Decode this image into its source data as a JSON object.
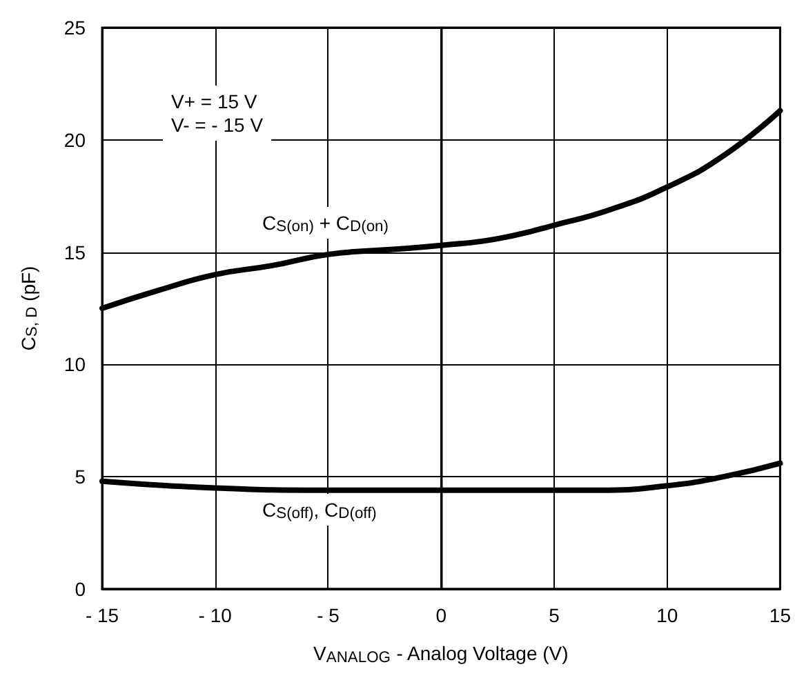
{
  "chart_data": {
    "type": "line",
    "xlabel": "V$_{ANALOG}$ - Analog Voltage (V)",
    "ylabel": "C$_{S, D}$ (pF)",
    "xlim": [
      -15,
      15
    ],
    "xticks": [
      {
        "value": -15,
        "label": "- 15"
      },
      {
        "value": -10,
        "label": "- 10"
      },
      {
        "value": -5,
        "label": "- 5"
      },
      0,
      5,
      10,
      15
    ],
    "ylim": [
      0,
      25
    ],
    "yticks": [
      0,
      5,
      10,
      15,
      20,
      25
    ],
    "grid": true,
    "marker": "none",
    "line_style": "solid",
    "series": [
      {
        "color": "#000000",
        "x": [
          -15,
          -12.5,
          -10,
          -7.5,
          -5,
          -2.5,
          0,
          2.5,
          5,
          7.5,
          10,
          12.5,
          15
        ],
        "values": [
          12.5,
          13.3,
          14.0,
          14.4,
          14.9,
          15.1,
          15.3,
          15.6,
          16.2,
          16.9,
          17.9,
          19.3,
          21.3
        ]
      },
      {
        "color": "#000000",
        "x": [
          -15,
          -10,
          -5,
          0,
          5,
          7,
          10,
          12.5,
          15
        ],
        "values": [
          4.8,
          4.5,
          4.4,
          4.4,
          4.4,
          4.4,
          4.6,
          5.0,
          5.6
        ]
      }
    ],
    "annotations": [
      "V+ = 15 V\nV- = - 15 V",
      "C$_{S(on)}$ + C$_{D(on)}$",
      "C$_{S(off)}$, C$_{D(off)}$"
    ]
  }
}
